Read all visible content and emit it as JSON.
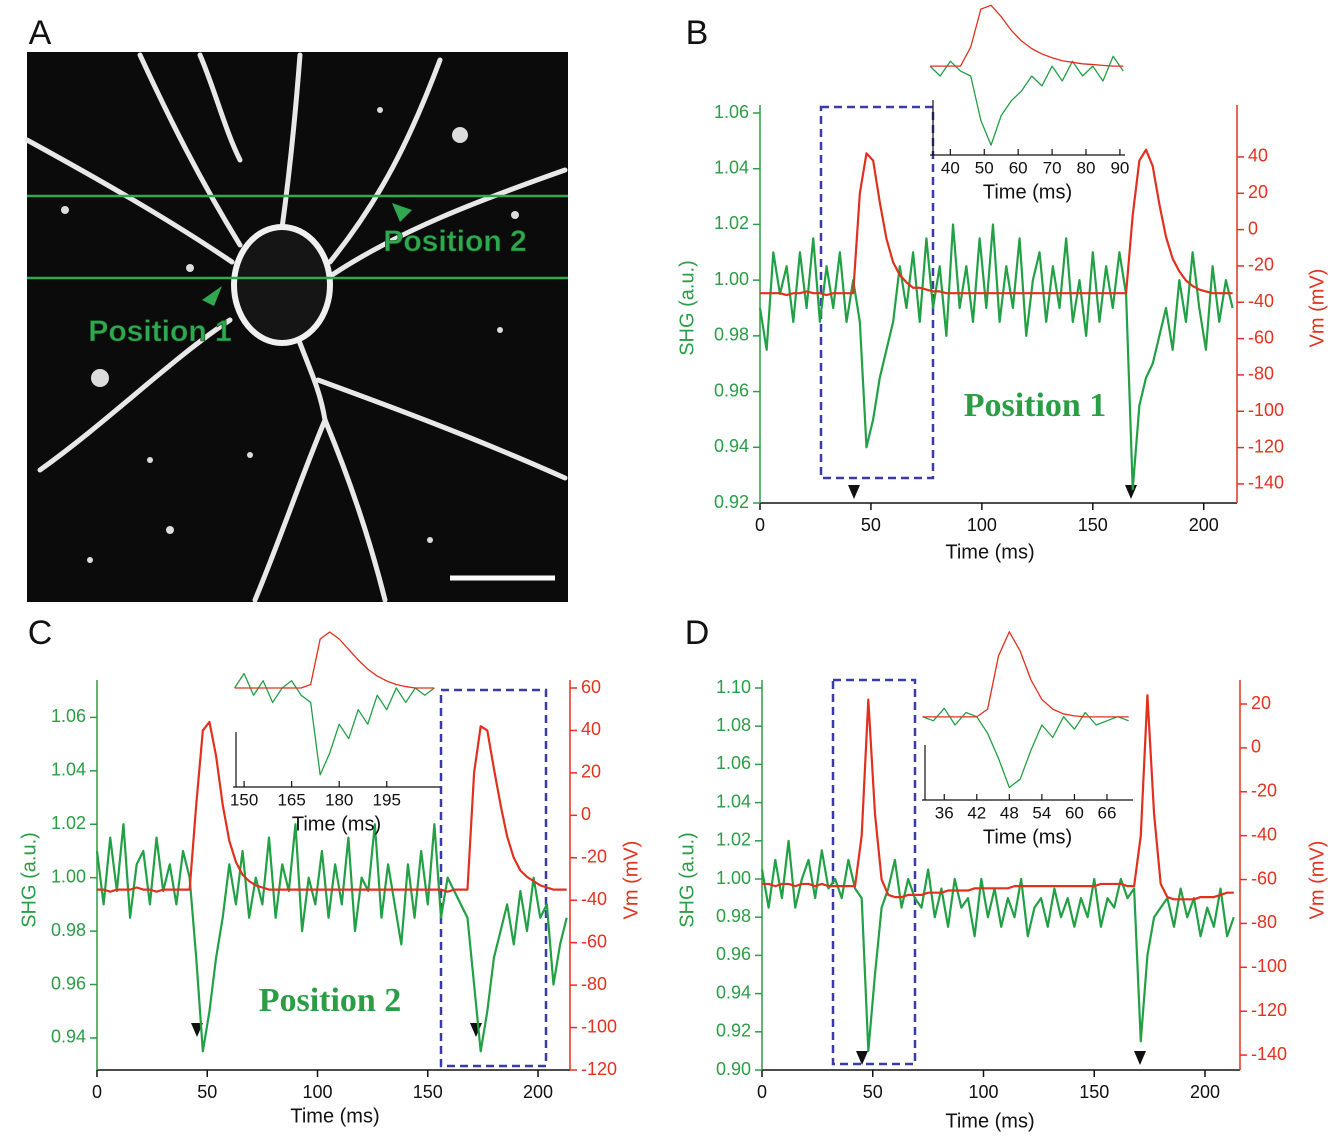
{
  "image_panel": {
    "label": "A",
    "annotations": [
      "Position 1",
      "Position 2"
    ]
  },
  "chart_data": [
    {
      "type": "line",
      "label": "B",
      "xlabel": "Time (ms)",
      "ylabel": "SHG (a.u.)",
      "y2label": "Vm (mV)",
      "annotation": "Position 1",
      "x": [
        0,
        3,
        6,
        9,
        12,
        15,
        18,
        21,
        24,
        27,
        30,
        33,
        36,
        39,
        42,
        45,
        48,
        51,
        54,
        57,
        60,
        63,
        66,
        69,
        72,
        75,
        78,
        81,
        84,
        87,
        90,
        93,
        96,
        99,
        102,
        105,
        108,
        111,
        114,
        117,
        120,
        123,
        126,
        129,
        132,
        135,
        138,
        141,
        144,
        147,
        150,
        153,
        156,
        159,
        162,
        165,
        168,
        171,
        174,
        177,
        180,
        183,
        186,
        189,
        192,
        195,
        198,
        201,
        204,
        207,
        210,
        213
      ],
      "xlim": [
        0,
        215
      ],
      "xticks": [
        0,
        50,
        100,
        150,
        200
      ],
      "ylim": [
        0.92,
        1.06
      ],
      "yticks": [
        0.92,
        0.94,
        0.96,
        0.98,
        {
          "value": 1,
          "label": "1.00"
        },
        1.02,
        1.04,
        1.06
      ],
      "y2lim": [
        -150.5,
        64.2
      ],
      "y2ticks": [
        -140,
        -120,
        -100,
        -80,
        -60,
        -40,
        -20,
        0,
        20,
        40
      ],
      "series": [
        {
          "color": "#22a045",
          "axis": "y",
          "values": [
            0.99,
            0.975,
            1.01,
            0.995,
            1.005,
            0.985,
            1.01,
            0.99,
            1.015,
            0.985,
            1.005,
            0.99,
            1.01,
            0.985,
            1.0,
            0.985,
            0.94,
            0.95,
            0.965,
            0.975,
            0.985,
            1.005,
            0.99,
            1.01,
            0.985,
            1.015,
            0.99,
            1.005,
            0.98,
            1.02,
            0.99,
            1.005,
            0.985,
            1.015,
            0.99,
            1.02,
            0.985,
            1.005,
            0.99,
            1.015,
            0.98,
            1.0,
            1.01,
            0.985,
            1.005,
            0.99,
            1.015,
            0.985,
            1.0,
            0.98,
            1.01,
            0.985,
            1.005,
            0.99,
            1.01,
            0.995,
            0.925,
            0.955,
            0.965,
            0.97,
            0.98,
            0.99,
            0.975,
            1.0,
            0.985,
            1.01,
            0.99,
            0.975,
            1.005,
            0.985,
            1.0,
            0.99
          ]
        },
        {
          "color": "#e0301e",
          "axis": "y2",
          "values": [
            -35,
            -35,
            -35,
            -35,
            -36,
            -35,
            -35,
            -34,
            -35,
            -35,
            -36,
            -35,
            -35,
            -35,
            -35,
            20,
            42,
            38,
            15,
            -5,
            -18,
            -25,
            -29,
            -32,
            -32,
            -33,
            -34,
            -34,
            -35,
            -35,
            -35,
            -35,
            -35,
            -35,
            -35,
            -35,
            -35,
            -35,
            -35,
            -35,
            -35,
            -35,
            -35,
            -35,
            -35,
            -35,
            -35,
            -35,
            -35,
            -35,
            -35,
            -35,
            -35,
            -35,
            -35,
            -35,
            8,
            38,
            44,
            35,
            14,
            -4,
            -16,
            -23,
            -28,
            -31,
            -33,
            -34,
            -35,
            -35,
            -35,
            -35
          ]
        }
      ],
      "inset": {
        "xlabel": "Time (ms)",
        "x": [
          34,
          37,
          40,
          43,
          46,
          49,
          52,
          55,
          58,
          61,
          64,
          67,
          70,
          73,
          76,
          79,
          82,
          85,
          88,
          91
        ],
        "xlim": [
          34,
          91.5
        ],
        "xticks": [
          40,
          50,
          60,
          70,
          80,
          90
        ],
        "ylim": [
          0.91,
          1.067
        ],
        "y2lim": [
          -152,
          52
        ],
        "series": [
          {
            "color": "#22a045",
            "axis": "y",
            "values": [
              1.0,
              0.99,
              1.005,
              0.995,
              0.99,
              0.945,
              0.92,
              0.95,
              0.965,
              0.975,
              0.99,
              0.98,
              1.0,
              0.985,
              1.005,
              0.99,
              1.0,
              0.985,
              1.01,
              0.995
            ]
          },
          {
            "color": "#e0301e",
            "axis": "y2",
            "values": [
              -35,
              -35,
              -35,
              -35,
              -10,
              40,
              45,
              30,
              12,
              -2,
              -12,
              -19,
              -24,
              -28,
              -30,
              -32,
              -33,
              -34,
              -35,
              -35
            ]
          }
        ]
      }
    },
    {
      "type": "line",
      "label": "C",
      "xlabel": "Time (ms)",
      "ylabel": "SHG (a.u.)",
      "y2label": "Vm (mV)",
      "annotation": "Position 2",
      "x": [
        0,
        3,
        6,
        9,
        12,
        15,
        18,
        21,
        24,
        27,
        30,
        33,
        36,
        39,
        42,
        45,
        48,
        51,
        54,
        57,
        60,
        63,
        66,
        69,
        72,
        75,
        78,
        81,
        84,
        87,
        90,
        93,
        96,
        99,
        102,
        105,
        108,
        111,
        114,
        117,
        120,
        123,
        126,
        129,
        132,
        135,
        138,
        141,
        144,
        147,
        150,
        153,
        156,
        159,
        162,
        165,
        168,
        171,
        174,
        177,
        180,
        183,
        186,
        189,
        192,
        195,
        198,
        201,
        204,
        207,
        210,
        213
      ],
      "xlim": [
        0,
        214.5
      ],
      "xticks": [
        0,
        50,
        100,
        150,
        200
      ],
      "ylim": [
        0.928,
        1.071
      ],
      "yticks": [
        0.94,
        0.96,
        0.98,
        {
          "value": 1,
          "label": "1.00"
        },
        1.02,
        1.04,
        1.06
      ],
      "y2lim": [
        -120,
        60
      ],
      "y2ticks": [
        -120,
        -100,
        -80,
        -60,
        -40,
        -20,
        0,
        20,
        40,
        60
      ],
      "series": [
        {
          "color": "#22a045",
          "axis": "y",
          "values": [
            1.01,
            0.99,
            1.015,
            0.995,
            1.02,
            0.985,
            1.005,
            1.01,
            0.99,
            1.015,
            0.995,
            1.005,
            0.99,
            1.01,
            1.0,
            0.97,
            0.935,
            0.95,
            0.97,
            0.985,
            1.005,
            0.99,
            1.01,
            0.985,
            1.0,
            0.99,
            1.015,
            0.985,
            1.005,
            0.995,
            1.02,
            0.98,
            1.0,
            0.99,
            1.01,
            0.985,
            1.005,
            0.99,
            1.015,
            0.98,
            1.0,
            0.995,
            1.02,
            0.985,
            1.005,
            0.99,
            0.975,
            1.005,
            0.985,
            1.01,
            0.99,
            1.02,
            0.985,
            1.0,
            0.995,
            0.99,
            0.985,
            0.96,
            0.935,
            0.95,
            0.97,
            0.98,
            0.99,
            0.975,
            0.995,
            0.98,
            1.0,
            0.985,
            0.99,
            0.96,
            0.975,
            0.985
          ]
        },
        {
          "color": "#e0301e",
          "axis": "y2",
          "values": [
            -35,
            -35,
            -36,
            -35,
            -35,
            -35,
            -34,
            -35,
            -35,
            -36,
            -35,
            -35,
            -35,
            -35,
            -35,
            5,
            40,
            44,
            28,
            5,
            -12,
            -22,
            -28,
            -31,
            -33,
            -34,
            -35,
            -35,
            -35,
            -35,
            -35,
            -35,
            -35,
            -35,
            -35,
            -35,
            -35,
            -35,
            -35,
            -35,
            -35,
            -35,
            -35,
            -35,
            -35,
            -35,
            -35,
            -35,
            -35,
            -35,
            -35,
            -35,
            -35,
            -36,
            -35,
            -35,
            -35,
            20,
            42,
            40,
            22,
            5,
            -10,
            -20,
            -26,
            -29,
            -31,
            -33,
            -34,
            -35,
            -35,
            -35
          ]
        }
      ],
      "inset": {
        "xlabel": "Time (ms)",
        "x": [
          147,
          150,
          153,
          156,
          159,
          162,
          165,
          168,
          171,
          174,
          177,
          180,
          183,
          186,
          189,
          192,
          195,
          198,
          201,
          204,
          207,
          210
        ],
        "xlim": [
          146.5,
          211.8
        ],
        "xticks": [
          150,
          165,
          180,
          195
        ],
        "ylim": [
          0.9316,
          1.0435
        ],
        "y2lim": [
          -176.5,
          55
        ],
        "series": [
          {
            "color": "#22a045",
            "axis": "y",
            "values": [
              1.0,
              1.01,
              0.995,
              1.005,
              0.99,
              1.0,
              1.005,
              0.995,
              0.99,
              0.94,
              0.955,
              0.975,
              0.965,
              0.985,
              0.975,
              0.995,
              0.985,
              1.0,
              0.99,
              1.0,
              0.995,
              1.0
            ]
          },
          {
            "color": "#e0301e",
            "axis": "y2",
            "values": [
              -35,
              -35,
              -35,
              -35,
              -35,
              -35,
              -35,
              -35,
              -30,
              35,
              45,
              35,
              20,
              5,
              -8,
              -18,
              -25,
              -30,
              -33,
              -35,
              -35,
              -35
            ]
          }
        ]
      }
    },
    {
      "type": "line",
      "label": "D",
      "xlabel": "Time (ms)",
      "ylabel": "SHG (a.u.)",
      "y2label": "Vm (mV)",
      "x": [
        0,
        3,
        6,
        9,
        12,
        15,
        18,
        21,
        24,
        27,
        30,
        33,
        36,
        39,
        42,
        45,
        48,
        51,
        54,
        57,
        60,
        63,
        66,
        69,
        72,
        75,
        78,
        81,
        84,
        87,
        90,
        93,
        96,
        99,
        102,
        105,
        108,
        111,
        114,
        117,
        120,
        123,
        126,
        129,
        132,
        135,
        138,
        141,
        144,
        147,
        150,
        153,
        156,
        159,
        162,
        165,
        168,
        171,
        174,
        177,
        180,
        183,
        186,
        189,
        192,
        195,
        198,
        201,
        204,
        207,
        210,
        213
      ],
      "xlim": [
        0,
        215.8
      ],
      "xticks": [
        0,
        50,
        100,
        150,
        200
      ],
      "ylim": [
        0.9,
        1.1
      ],
      "yticks": [
        {
          "value": 0.9,
          "label": "0.90"
        },
        0.92,
        0.94,
        0.96,
        0.98,
        {
          "value": 1,
          "label": "1.00"
        },
        1.02,
        1.04,
        1.06,
        1.08,
        {
          "value": 1.1,
          "label": "1.10"
        }
      ],
      "y2lim": [
        -146.8,
        27.3
      ],
      "y2ticks": [
        -140,
        -120,
        -100,
        -80,
        -60,
        -40,
        -20,
        0,
        20
      ],
      "series": [
        {
          "color": "#22a045",
          "axis": "y",
          "values": [
            1.005,
            0.985,
            1.01,
            0.99,
            1.02,
            0.985,
            1.0,
            1.01,
            0.99,
            1.015,
            0.995,
            1.0,
            0.99,
            1.01,
            0.995,
            0.99,
            0.91,
            0.95,
            0.985,
            0.995,
            1.01,
            0.985,
            1.0,
            0.99,
            0.985,
            1.005,
            0.98,
            0.995,
            0.975,
            1.0,
            0.985,
            0.99,
            0.97,
            1.0,
            0.98,
            0.995,
            0.975,
            0.99,
            0.98,
            1.0,
            0.97,
            0.985,
            0.99,
            0.975,
            0.995,
            0.98,
            0.99,
            0.975,
            0.99,
            0.98,
            1.0,
            0.975,
            0.99,
            0.985,
            1.0,
            0.99,
            0.995,
            0.915,
            0.96,
            0.98,
            0.985,
            0.99,
            0.975,
            0.995,
            0.98,
            0.99,
            0.97,
            0.985,
            0.975,
            0.995,
            0.97,
            0.98
          ]
        },
        {
          "color": "#e0301e",
          "axis": "y2",
          "values": [
            -62,
            -62,
            -63,
            -62,
            -62,
            -63,
            -62,
            -62,
            -63,
            -62,
            -63,
            -63,
            -63,
            -63,
            -63,
            -40,
            22,
            -30,
            -60,
            -67,
            -68,
            -68,
            -67,
            -67,
            -67,
            -66,
            -66,
            -66,
            -65,
            -65,
            -65,
            -65,
            -64,
            -64,
            -64,
            -64,
            -64,
            -64,
            -63,
            -63,
            -63,
            -63,
            -63,
            -63,
            -63,
            -63,
            -63,
            -63,
            -63,
            -63,
            -63,
            -62,
            -62,
            -62,
            -62,
            -63,
            -63,
            -40,
            24,
            -30,
            -62,
            -68,
            -69,
            -69,
            -69,
            -69,
            -68,
            -68,
            -68,
            -67,
            -66,
            -66
          ]
        }
      ],
      "inset": {
        "xlabel": "Time (ms)",
        "x": [
          32,
          34,
          36,
          38,
          40,
          42,
          44,
          46,
          48,
          50,
          52,
          54,
          56,
          58,
          60,
          62,
          64,
          66,
          68,
          70
        ],
        "xlim": [
          31.9,
          70.8
        ],
        "xticks": [
          36,
          42,
          48,
          54,
          60,
          66
        ],
        "ylim": [
          0.9,
          1.11
        ],
        "y2lim": [
          -149,
          32
        ],
        "series": [
          {
            "color": "#22a045",
            "axis": "y",
            "values": [
              1.0,
              0.995,
              1.01,
              0.99,
              1.005,
              1.0,
              0.98,
              0.95,
              0.915,
              0.925,
              0.96,
              0.99,
              0.975,
              1.0,
              0.985,
              1.005,
              0.99,
              0.995,
              1.0,
              0.995
            ]
          },
          {
            "color": "#e0301e",
            "axis": "y2",
            "values": [
              -63,
              -63,
              -63,
              -63,
              -63,
              -63,
              -55,
              0,
              25,
              5,
              -25,
              -45,
              -55,
              -60,
              -62,
              -63,
              -63,
              -63,
              -63,
              -63
            ]
          }
        ]
      }
    }
  ]
}
